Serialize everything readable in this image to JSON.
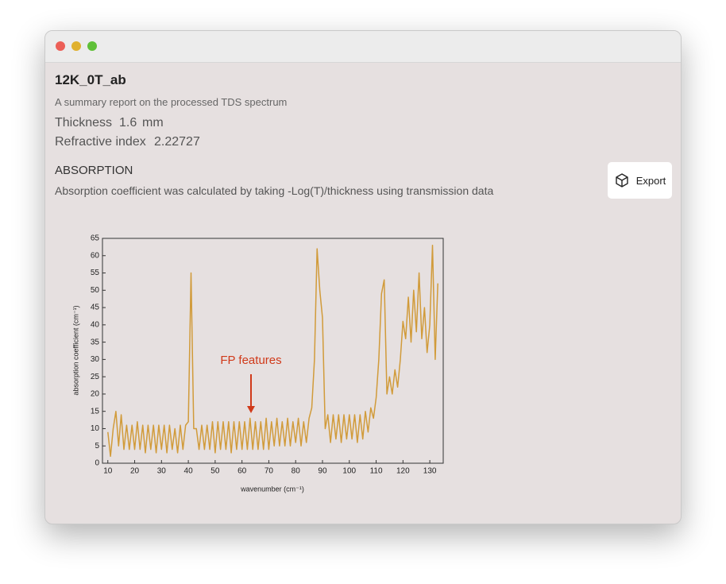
{
  "window": {
    "title": "12K_0T_ab",
    "subtitle": "A summary report on the processed TDS spectrum",
    "thickness": {
      "label": "Thickness",
      "value": 1.6,
      "unit": "mm"
    },
    "refractive_index": {
      "label": "Refractive index",
      "value": 2.22727
    },
    "section": {
      "title": "ABSORPTION",
      "description": "Absorption coefficient was calculated by taking -Log(T)/thickness using transmission data"
    },
    "export_button": "Export"
  },
  "chart_data": {
    "type": "line",
    "xlabel": "wavenumber (cm⁻¹)",
    "ylabel": "absorption coefficient (cm⁻¹)",
    "annotation": "FP features",
    "color": "#d19b3a",
    "x": [
      10,
      11,
      12,
      13,
      14,
      15,
      16,
      17,
      18,
      19,
      20,
      21,
      22,
      23,
      24,
      25,
      26,
      27,
      28,
      29,
      30,
      31,
      32,
      33,
      34,
      35,
      36,
      37,
      38,
      39,
      40,
      41,
      42,
      43,
      44,
      45,
      46,
      47,
      48,
      49,
      50,
      51,
      52,
      53,
      54,
      55,
      56,
      57,
      58,
      59,
      60,
      61,
      62,
      63,
      64,
      65,
      66,
      67,
      68,
      69,
      70,
      71,
      72,
      73,
      74,
      75,
      76,
      77,
      78,
      79,
      80,
      81,
      82,
      83,
      84,
      85,
      86,
      87,
      88,
      89,
      90,
      91,
      92,
      93,
      94,
      95,
      96,
      97,
      98,
      99,
      100,
      101,
      102,
      103,
      104,
      105,
      106,
      107,
      108,
      109,
      110,
      111,
      112,
      113,
      114,
      115,
      116,
      117,
      118,
      119,
      120,
      121,
      122,
      123,
      124,
      125,
      126,
      127,
      128,
      129,
      130,
      131,
      132,
      133
    ],
    "values": [
      9,
      2,
      10,
      15,
      5,
      14,
      4,
      11,
      4,
      11,
      4,
      12,
      4,
      11,
      3,
      11,
      4,
      11,
      3,
      11,
      4,
      11,
      3,
      11,
      4,
      10,
      3,
      11,
      4,
      11,
      12,
      55,
      10,
      10,
      4,
      11,
      4,
      11,
      4,
      12,
      3,
      12,
      4,
      12,
      4,
      12,
      3,
      12,
      4,
      12,
      4,
      12,
      4,
      13,
      4,
      12,
      4,
      12,
      4,
      13,
      4,
      12,
      5,
      13,
      5,
      12,
      5,
      13,
      5,
      12,
      6,
      13,
      5,
      12,
      6,
      13,
      16,
      30,
      62,
      50,
      42,
      10,
      14,
      6,
      14,
      7,
      14,
      6,
      14,
      7,
      14,
      7,
      14,
      6,
      14,
      7,
      15,
      9,
      16,
      13,
      19,
      30,
      49,
      53,
      20,
      25,
      20,
      27,
      22,
      30,
      41,
      36,
      48,
      35,
      50,
      38,
      55,
      36,
      45,
      32,
      40,
      63,
      30,
      52
    ],
    "xlim": [
      8,
      135
    ],
    "ylim": [
      0,
      65
    ],
    "xticks": [
      10,
      20,
      30,
      40,
      50,
      60,
      70,
      80,
      90,
      100,
      110,
      120,
      130
    ],
    "yticks": [
      0,
      5,
      10,
      15,
      20,
      25,
      30,
      35,
      40,
      45,
      50,
      55,
      60,
      65
    ]
  }
}
